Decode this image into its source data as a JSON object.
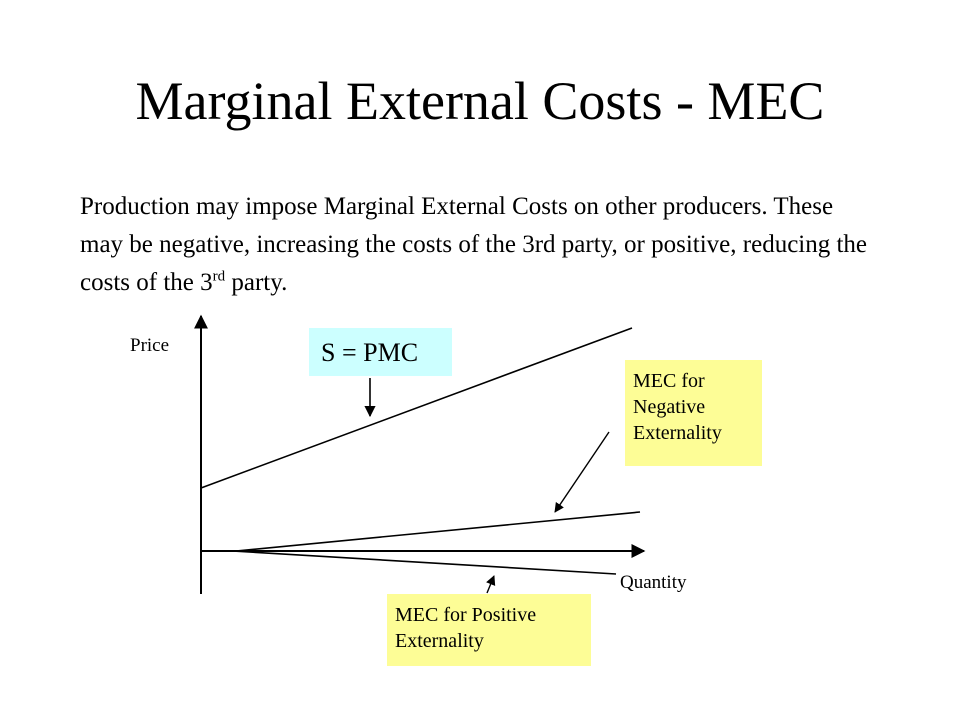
{
  "slide": {
    "title": "Marginal External Costs  - MEC",
    "body_main": "Production may  impose Marginal External Costs on other producers.  These may be negative, increasing the costs of the 3rd party, or positive, reducing the costs of the 3",
    "body_sup": "rd",
    "body_end": " party."
  },
  "diagram": {
    "y_axis_label": "Price",
    "x_axis_label": "Quantity",
    "supply_label": "S = PMC",
    "mec_negative_line1": "MEC for",
    "mec_negative_line2": "Negative",
    "mec_negative_line3": "Externality",
    "mec_positive_line1": "MEC for Positive",
    "mec_positive_line2": "Externality"
  },
  "colors": {
    "annotation_yellow": "#fdfd96",
    "annotation_cyan": "#ccffff"
  }
}
